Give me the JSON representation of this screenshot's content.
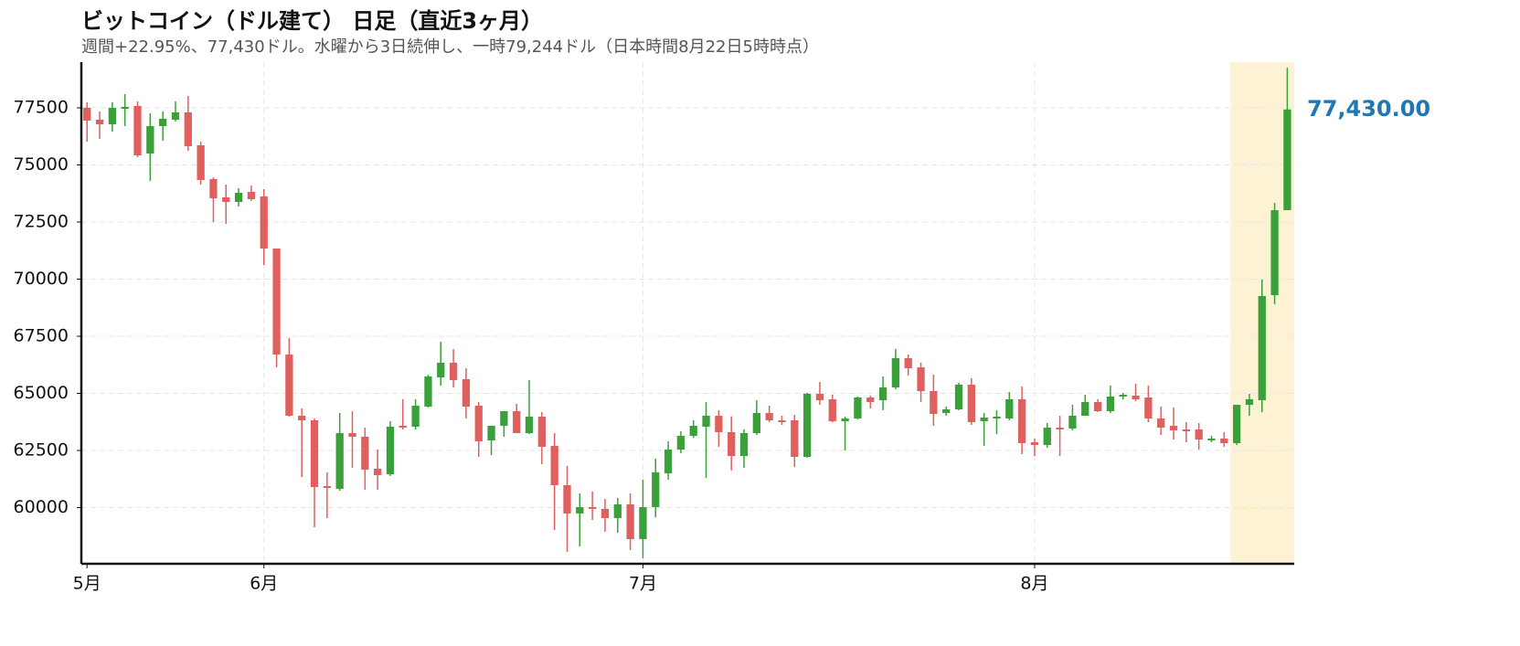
{
  "chart_data": {
    "type": "candlestick",
    "title": "ビットコイン（ドル建て） 日足（直近3ヶ月）",
    "subtitle": "週間+22.95%、77,430ドル。水曜から3日続伸し、一時79,244ドル（日本時間8月22日5時時点）",
    "categories": [
      "5月",
      null,
      null,
      null,
      null,
      null,
      null,
      null,
      null,
      null,
      null,
      null,
      null,
      null,
      "6月",
      null,
      null,
      null,
      null,
      null,
      null,
      null,
      null,
      null,
      null,
      null,
      null,
      null,
      null,
      null,
      null,
      null,
      null,
      null,
      null,
      null,
      null,
      null,
      null,
      null,
      null,
      null,
      null,
      null,
      "7月",
      null,
      null,
      null,
      null,
      null,
      null,
      null,
      null,
      null,
      null,
      null,
      null,
      null,
      null,
      null,
      null,
      null,
      null,
      null,
      null,
      null,
      null,
      null,
      null,
      null,
      null,
      null,
      null,
      null,
      null,
      "8月",
      null,
      null,
      null,
      null,
      null,
      null,
      null,
      null,
      null,
      null,
      null,
      null,
      null,
      null,
      null,
      null,
      null,
      null,
      null,
      null
    ],
    "open": [
      77500,
      76980,
      76780,
      77460,
      77580,
      75500,
      76700,
      76980,
      77300,
      75860,
      74380,
      73580,
      73380,
      73820,
      73620,
      71340,
      66700,
      64020,
      63820,
      60940,
      60820,
      63260,
      63100,
      61700,
      61460,
      63580,
      63540,
      64420,
      65700,
      66340,
      65620,
      64460,
      62940,
      63580,
      64220,
      63260,
      63980,
      62700,
      60980,
      59740,
      60020,
      59940,
      59540,
      60140,
      58620,
      60020,
      61500,
      62540,
      63140,
      63540,
      64020,
      63300,
      62260,
      63260,
      64140,
      63820,
      63820,
      62220,
      64980,
      64740,
      63780,
      63900,
      64820,
      64700,
      65260,
      66540,
      66140,
      65100,
      64140,
      64300,
      65380,
      63780,
      63900,
      63900,
      64740,
      62860,
      62740,
      63500,
      63460,
      64020,
      64620,
      64220,
      64860,
      64900,
      64820,
      63900,
      63580,
      63420,
      63420,
      62980,
      63020,
      62820,
      64500,
      64700,
      69300,
      73020
    ],
    "high": [
      77740,
      77340,
      77740,
      78100,
      77780,
      77260,
      77340,
      77780,
      78020,
      76020,
      74460,
      74140,
      73980,
      74100,
      73940,
      71340,
      67420,
      64340,
      63900,
      61540,
      64140,
      64220,
      63500,
      62540,
      63780,
      64740,
      64740,
      65820,
      67260,
      66940,
      66100,
      64620,
      63580,
      64220,
      64540,
      65580,
      64180,
      63260,
      61820,
      60620,
      60700,
      60380,
      60420,
      60620,
      61220,
      62140,
      62900,
      63340,
      63820,
      64620,
      64260,
      64000,
      63420,
      64700,
      64460,
      64020,
      64060,
      65020,
      65500,
      64940,
      63980,
      64860,
      64900,
      65740,
      66940,
      66700,
      66340,
      65820,
      64420,
      65460,
      65660,
      64140,
      64260,
      65060,
      65300,
      63020,
      63700,
      64020,
      64500,
      64940,
      64740,
      65340,
      65020,
      65420,
      65340,
      64420,
      64380,
      63740,
      63700,
      63140,
      63300,
      64500,
      64980,
      69980,
      73340,
      79260
    ],
    "low": [
      76020,
      76140,
      76460,
      76700,
      75340,
      74300,
      76060,
      76900,
      75620,
      74140,
      72500,
      72420,
      73180,
      73420,
      70620,
      66140,
      63980,
      61340,
      59140,
      59540,
      60740,
      61740,
      60780,
      60780,
      61380,
      63420,
      63420,
      64380,
      65340,
      65260,
      63900,
      62220,
      62300,
      63100,
      63260,
      63220,
      61900,
      59020,
      58060,
      58300,
      59460,
      58940,
      58900,
      58140,
      57780,
      59580,
      61220,
      62380,
      63060,
      61300,
      62660,
      61620,
      61740,
      63180,
      63740,
      63620,
      61780,
      62180,
      64500,
      63740,
      62500,
      63860,
      64340,
      64260,
      65180,
      65780,
      64620,
      63580,
      64020,
      64260,
      63620,
      62700,
      63220,
      63820,
      62340,
      62260,
      62620,
      62260,
      63380,
      64020,
      64180,
      64140,
      64740,
      64660,
      63740,
      63180,
      62980,
      62860,
      62540,
      62860,
      62660,
      62740,
      64020,
      64180,
      68900,
      73020
    ],
    "close": [
      76940,
      76780,
      77500,
      77540,
      75420,
      76700,
      77020,
      77300,
      75820,
      74340,
      73540,
      73380,
      73780,
      73500,
      71340,
      66700,
      64020,
      63820,
      60900,
      60860,
      63260,
      63100,
      61660,
      61420,
      63540,
      63540,
      64460,
      65740,
      66340,
      65580,
      64420,
      62900,
      63580,
      64220,
      63260,
      63980,
      62660,
      60980,
      59740,
      60020,
      59940,
      59540,
      60140,
      58620,
      60020,
      61540,
      62540,
      63140,
      63580,
      64020,
      63300,
      62260,
      63260,
      64140,
      63820,
      63740,
      62220,
      64980,
      64700,
      63780,
      63900,
      64820,
      64620,
      65260,
      66540,
      66100,
      65100,
      64100,
      64300,
      65380,
      63740,
      63940,
      63980,
      64740,
      62820,
      62740,
      63500,
      63460,
      64020,
      64620,
      64220,
      64860,
      64940,
      64740,
      63900,
      63500,
      63380,
      63380,
      62980,
      63020,
      62820,
      64500,
      64740,
      69260,
      73020,
      77430
    ],
    "up_color": "#3aa13a",
    "down_color": "#e0605f",
    "ylim": [
      57540,
      79500
    ],
    "yticks": [
      60000,
      62500,
      65000,
      67500,
      70000,
      72500,
      75000,
      77500
    ],
    "grid": true,
    "highlight": [
      91,
      95
    ],
    "highlight_color": "#fdf3d4",
    "last_price": {
      "value": 77430,
      "label": "77,430.00"
    },
    "last_price_color": "#1f77b4"
  }
}
